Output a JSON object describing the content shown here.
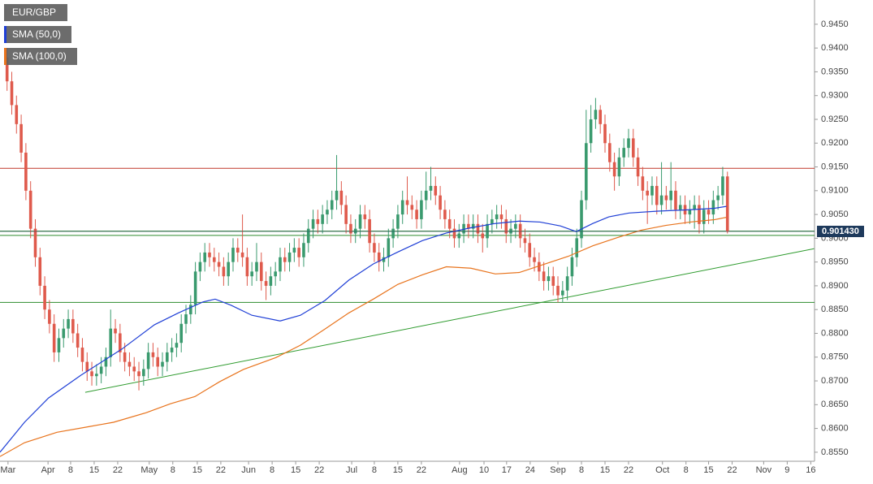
{
  "chart_data": {
    "type": "candlestick",
    "symbol": "EUR/GBP",
    "up_color": "#3a9a6e",
    "down_color": "#df5a4c",
    "xlim": [
      -1.5,
      171.5
    ],
    "ylim": [
      0.8531,
      0.9501
    ],
    "xticks": [
      {
        "value": 0.2,
        "label": "Mar"
      },
      {
        "value": 8.7,
        "label": "Apr"
      },
      {
        "value": 13.5,
        "label": "8"
      },
      {
        "value": 18.5,
        "label": "15"
      },
      {
        "value": 23.5,
        "label": "22"
      },
      {
        "value": 30.2,
        "label": "May"
      },
      {
        "value": 35.2,
        "label": "8"
      },
      {
        "value": 40.4,
        "label": "15"
      },
      {
        "value": 45.4,
        "label": "22"
      },
      {
        "value": 51.3,
        "label": "Jun"
      },
      {
        "value": 56.3,
        "label": "8"
      },
      {
        "value": 61.3,
        "label": "15"
      },
      {
        "value": 66.3,
        "label": "22"
      },
      {
        "value": 73.2,
        "label": "Jul"
      },
      {
        "value": 78,
        "label": "8"
      },
      {
        "value": 83,
        "label": "15"
      },
      {
        "value": 88,
        "label": "22"
      },
      {
        "value": 96.1,
        "label": "Aug"
      },
      {
        "value": 101.3,
        "label": "10"
      },
      {
        "value": 106.1,
        "label": "17"
      },
      {
        "value": 111.1,
        "label": "24"
      },
      {
        "value": 117,
        "label": "Sep"
      },
      {
        "value": 122,
        "label": "8"
      },
      {
        "value": 127,
        "label": "15"
      },
      {
        "value": 132,
        "label": "22"
      },
      {
        "value": 139.2,
        "label": "Oct"
      },
      {
        "value": 144.2,
        "label": "8"
      },
      {
        "value": 149,
        "label": "15"
      },
      {
        "value": 154,
        "label": "22"
      },
      {
        "value": 160.7,
        "label": "Nov"
      },
      {
        "value": 165.7,
        "label": "9"
      },
      {
        "value": 170.7,
        "label": "16"
      }
    ],
    "yticks": [
      {
        "value": 0.855,
        "label": "0.8550"
      },
      {
        "value": 0.86,
        "label": "0.8600"
      },
      {
        "value": 0.865,
        "label": "0.8650"
      },
      {
        "value": 0.87,
        "label": "0.8700"
      },
      {
        "value": 0.875,
        "label": "0.8750"
      },
      {
        "value": 0.88,
        "label": "0.8800"
      },
      {
        "value": 0.885,
        "label": "0.8850"
      },
      {
        "value": 0.89,
        "label": "0.8900"
      },
      {
        "value": 0.895,
        "label": "0.8950"
      },
      {
        "value": 0.9,
        "label": "0.9000"
      },
      {
        "value": 0.905,
        "label": "0.9050"
      },
      {
        "value": 0.91,
        "label": "0.9100"
      },
      {
        "value": 0.915,
        "label": "0.9150"
      },
      {
        "value": 0.92,
        "label": "0.9200"
      },
      {
        "value": 0.925,
        "label": "0.9250"
      },
      {
        "value": 0.93,
        "label": "0.9300"
      },
      {
        "value": 0.935,
        "label": "0.9350"
      },
      {
        "value": 0.94,
        "label": "0.9400"
      },
      {
        "value": 0.945,
        "label": "0.9450"
      }
    ],
    "open": [
      0.938,
      0.933,
      0.928,
      0.924,
      0.918,
      0.91,
      0.902,
      0.896,
      0.89,
      0.885,
      0.882,
      0.876,
      0.879,
      0.881,
      0.883,
      0.88,
      0.877,
      0.874,
      0.872,
      0.871,
      0.8715,
      0.873,
      0.875,
      0.881,
      0.88,
      0.876,
      0.874,
      0.873,
      0.872,
      0.871,
      0.8725,
      0.876,
      0.875,
      0.873,
      0.874,
      0.876,
      0.877,
      0.878,
      0.882,
      0.884,
      0.886,
      0.893,
      0.895,
      0.897,
      0.896,
      0.895,
      0.894,
      0.892,
      0.895,
      0.898,
      0.897,
      0.896,
      0.892,
      0.893,
      0.895,
      0.891,
      0.89,
      0.892,
      0.893,
      0.896,
      0.895,
      0.897,
      0.898,
      0.896,
      0.899,
      0.902,
      0.904,
      0.903,
      0.905,
      0.906,
      0.908,
      0.91,
      0.907,
      0.903,
      0.901,
      0.902,
      0.905,
      0.904,
      0.899,
      0.897,
      0.895,
      0.896,
      0.9,
      0.902,
      0.905,
      0.908,
      0.907,
      0.906,
      0.904,
      0.908,
      0.91,
      0.911,
      0.909,
      0.906,
      0.904,
      0.902,
      0.9,
      0.901,
      0.903,
      0.902,
      0.903,
      0.901,
      0.9,
      0.903,
      0.904,
      0.905,
      0.904,
      0.901,
      0.902,
      0.903,
      0.9,
      0.899,
      0.896,
      0.895,
      0.893,
      0.891,
      0.892,
      0.89,
      0.888,
      0.889,
      0.892,
      0.896,
      0.9,
      0.908,
      0.92,
      0.925,
      0.927,
      0.924,
      0.92,
      0.916,
      0.913,
      0.917,
      0.919,
      0.921,
      0.917,
      0.913,
      0.91,
      0.909,
      0.911,
      0.907,
      0.909,
      0.908,
      0.91,
      0.906,
      0.907,
      0.905,
      0.906,
      0.907,
      0.903,
      0.906,
      0.905,
      0.908,
      0.909,
      0.913
    ],
    "high": [
      0.94,
      0.935,
      0.93,
      0.926,
      0.92,
      0.912,
      0.904,
      0.898,
      0.892,
      0.887,
      0.884,
      0.881,
      0.883,
      0.885,
      0.885,
      0.882,
      0.879,
      0.876,
      0.874,
      0.8735,
      0.875,
      0.877,
      0.885,
      0.883,
      0.882,
      0.878,
      0.876,
      0.875,
      0.874,
      0.8745,
      0.878,
      0.878,
      0.877,
      0.876,
      0.878,
      0.879,
      0.88,
      0.884,
      0.886,
      0.888,
      0.895,
      0.897,
      0.899,
      0.899,
      0.898,
      0.897,
      0.896,
      0.897,
      0.9,
      0.9,
      0.905,
      0.898,
      0.895,
      0.899,
      0.897,
      0.893,
      0.894,
      0.895,
      0.898,
      0.898,
      0.899,
      0.9,
      0.9,
      0.901,
      0.904,
      0.906,
      0.906,
      0.907,
      0.908,
      0.91,
      0.9175,
      0.912,
      0.909,
      0.905,
      0.904,
      0.907,
      0.907,
      0.906,
      0.901,
      0.899,
      0.898,
      0.902,
      0.904,
      0.907,
      0.91,
      0.913,
      0.909,
      0.908,
      0.91,
      0.914,
      0.915,
      0.913,
      0.911,
      0.908,
      0.906,
      0.904,
      0.903,
      0.905,
      0.905,
      0.905,
      0.905,
      0.903,
      0.905,
      0.906,
      0.907,
      0.907,
      0.906,
      0.904,
      0.905,
      0.905,
      0.902,
      0.901,
      0.898,
      0.897,
      0.895,
      0.894,
      0.894,
      0.892,
      0.891,
      0.894,
      0.898,
      0.902,
      0.91,
      0.927,
      0.928,
      0.9295,
      0.928,
      0.926,
      0.922,
      0.918,
      0.919,
      0.921,
      0.923,
      0.923,
      0.919,
      0.915,
      0.912,
      0.913,
      0.913,
      0.916,
      0.911,
      0.916,
      0.912,
      0.909,
      0.909,
      0.908,
      0.909,
      0.909,
      0.908,
      0.908,
      0.91,
      0.911,
      0.915,
      0.914
    ],
    "low": [
      0.931,
      0.926,
      0.922,
      0.916,
      0.908,
      0.9,
      0.894,
      0.888,
      0.883,
      0.88,
      0.874,
      0.874,
      0.877,
      0.879,
      0.878,
      0.875,
      0.872,
      0.87,
      0.869,
      0.869,
      0.8695,
      0.871,
      0.873,
      0.878,
      0.874,
      0.872,
      0.871,
      0.87,
      0.868,
      0.869,
      0.8705,
      0.873,
      0.871,
      0.871,
      0.872,
      0.874,
      0.875,
      0.876,
      0.88,
      0.882,
      0.884,
      0.891,
      0.893,
      0.894,
      0.893,
      0.892,
      0.89,
      0.89,
      0.893,
      0.895,
      0.894,
      0.89,
      0.89,
      0.891,
      0.889,
      0.887,
      0.888,
      0.89,
      0.891,
      0.893,
      0.893,
      0.895,
      0.894,
      0.894,
      0.897,
      0.9,
      0.901,
      0.901,
      0.903,
      0.904,
      0.906,
      0.905,
      0.901,
      0.899,
      0.899,
      0.9,
      0.902,
      0.897,
      0.895,
      0.893,
      0.893,
      0.894,
      0.898,
      0.9,
      0.903,
      0.905,
      0.904,
      0.902,
      0.902,
      0.906,
      0.908,
      0.907,
      0.904,
      0.902,
      0.9,
      0.898,
      0.898,
      0.899,
      0.9,
      0.9,
      0.899,
      0.897,
      0.898,
      0.901,
      0.902,
      0.902,
      0.899,
      0.899,
      0.9,
      0.898,
      0.897,
      0.894,
      0.893,
      0.891,
      0.889,
      0.889,
      0.888,
      0.8865,
      0.8865,
      0.887,
      0.89,
      0.894,
      0.898,
      0.906,
      0.918,
      0.923,
      0.922,
      0.918,
      0.914,
      0.91,
      0.911,
      0.915,
      0.917,
      0.915,
      0.911,
      0.908,
      0.903,
      0.907,
      0.905,
      0.905,
      0.906,
      0.906,
      0.904,
      0.904,
      0.903,
      0.903,
      0.902,
      0.901,
      0.901,
      0.903,
      0.903,
      0.906,
      0.907,
      0.901
    ],
    "close": [
      0.933,
      0.928,
      0.924,
      0.918,
      0.91,
      0.902,
      0.896,
      0.89,
      0.885,
      0.882,
      0.876,
      0.879,
      0.881,
      0.883,
      0.88,
      0.877,
      0.874,
      0.872,
      0.871,
      0.8715,
      0.873,
      0.875,
      0.881,
      0.88,
      0.876,
      0.874,
      0.873,
      0.872,
      0.871,
      0.8725,
      0.876,
      0.875,
      0.873,
      0.874,
      0.876,
      0.877,
      0.878,
      0.882,
      0.884,
      0.886,
      0.893,
      0.895,
      0.897,
      0.896,
      0.895,
      0.894,
      0.892,
      0.895,
      0.898,
      0.897,
      0.896,
      0.892,
      0.893,
      0.895,
      0.891,
      0.89,
      0.892,
      0.893,
      0.896,
      0.895,
      0.897,
      0.898,
      0.896,
      0.899,
      0.902,
      0.904,
      0.903,
      0.905,
      0.906,
      0.908,
      0.91,
      0.907,
      0.903,
      0.901,
      0.902,
      0.905,
      0.904,
      0.899,
      0.897,
      0.895,
      0.896,
      0.9,
      0.902,
      0.905,
      0.908,
      0.907,
      0.906,
      0.904,
      0.908,
      0.91,
      0.911,
      0.909,
      0.906,
      0.904,
      0.902,
      0.9,
      0.901,
      0.903,
      0.902,
      0.903,
      0.901,
      0.9,
      0.903,
      0.904,
      0.905,
      0.904,
      0.901,
      0.902,
      0.903,
      0.9,
      0.899,
      0.896,
      0.895,
      0.893,
      0.891,
      0.892,
      0.89,
      0.888,
      0.889,
      0.892,
      0.896,
      0.9,
      0.908,
      0.92,
      0.925,
      0.927,
      0.924,
      0.92,
      0.916,
      0.913,
      0.917,
      0.919,
      0.921,
      0.917,
      0.913,
      0.91,
      0.909,
      0.911,
      0.907,
      0.909,
      0.908,
      0.91,
      0.906,
      0.907,
      0.905,
      0.906,
      0.907,
      0.903,
      0.906,
      0.905,
      0.908,
      0.909,
      0.913,
      0.9014
    ],
    "series": [
      {
        "name": "SMA (50,0)",
        "color": "#1f3fd6",
        "x": [
          -1.5,
          3.7,
          8.8,
          15.7,
          24.4,
          31.3,
          36.4,
          41.6,
          44.2,
          47.6,
          52,
          58,
          62.3,
          67.5,
          72.6,
          77.8,
          83,
          88.2,
          93.3,
          98.5,
          103.7,
          108.8,
          113.2,
          117.5,
          120.9,
          124.4,
          127.8,
          132.1,
          138.2,
          145.1,
          150.2,
          152.8
        ],
        "values": [
          0.855,
          0.8613,
          0.8664,
          0.8712,
          0.8767,
          0.8818,
          0.8843,
          0.8866,
          0.8872,
          0.8859,
          0.8838,
          0.8826,
          0.8838,
          0.8869,
          0.8912,
          0.8946,
          0.8971,
          0.8995,
          0.9011,
          0.9022,
          0.9031,
          0.9036,
          0.9034,
          0.9026,
          0.9014,
          0.9031,
          0.9045,
          0.9053,
          0.9057,
          0.906,
          0.9063,
          0.9067
        ]
      },
      {
        "name": "SMA (100,0)",
        "color": "#e8731c",
        "x": [
          -1.5,
          3.7,
          10.6,
          17.5,
          22.6,
          29.5,
          34.7,
          39.9,
          45.1,
          50.2,
          57.1,
          62.3,
          67.5,
          72.6,
          77.8,
          83,
          88.2,
          93.3,
          98.5,
          103.7,
          108.8,
          114,
          119.2,
          124.4,
          129.5,
          134.7,
          139.9,
          145.1,
          150.2,
          152.8
        ],
        "values": [
          0.8541,
          0.857,
          0.8592,
          0.8604,
          0.8613,
          0.8633,
          0.8652,
          0.8667,
          0.8698,
          0.8724,
          0.8749,
          0.8775,
          0.8809,
          0.8843,
          0.8872,
          0.8903,
          0.8923,
          0.894,
          0.8937,
          0.8925,
          0.8928,
          0.8945,
          0.8962,
          0.8984,
          0.9001,
          0.9017,
          0.9027,
          0.9034,
          0.9039,
          0.9044
        ]
      }
    ],
    "hlines": [
      {
        "value": 0.9147,
        "color": "#c0392b"
      },
      {
        "value": 0.9015,
        "color": "#2e8b2e"
      },
      {
        "value": 0.9006,
        "color": "#2e8b2e"
      },
      {
        "value": 0.8865,
        "color": "#2e8b2e"
      }
    ],
    "trendlines": [
      {
        "x": [
          16.6,
          171.4
        ],
        "y": [
          0.8676,
          0.8978
        ],
        "color": "#2e9b2e"
      }
    ],
    "last_price": {
      "value": 0.90143,
      "label": "0.901430"
    }
  }
}
